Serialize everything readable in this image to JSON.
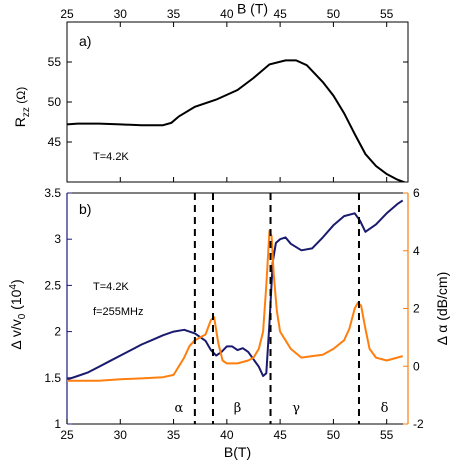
{
  "chart_data": [
    {
      "type": "line",
      "panel_label": "a)",
      "xlabel": "B (T)",
      "ylabel": "R",
      "ylabel_sub": "zz",
      "ylabel_unit": " (Ω)",
      "xlim": [
        25,
        57
      ],
      "ylim": [
        40,
        60
      ],
      "xticks": [
        25,
        30,
        35,
        40,
        45,
        50,
        55
      ],
      "yticks": [
        45,
        50,
        55
      ],
      "annotation": "T=4.2K",
      "series": [
        {
          "color": "#000000",
          "x": [
            25,
            26,
            28,
            30,
            32,
            34,
            34.8,
            35.5,
            37,
            39,
            41,
            42.5,
            44,
            45.5,
            46.5,
            47.5,
            49,
            50,
            51,
            52,
            53,
            54,
            55,
            56,
            57
          ],
          "y": [
            47.2,
            47.3,
            47.3,
            47.2,
            47.1,
            47.1,
            47.4,
            48.2,
            49.4,
            50.3,
            51.5,
            53.0,
            54.7,
            55.2,
            55.2,
            54.6,
            52.5,
            50.8,
            48.6,
            46.0,
            43.5,
            42.0,
            41.0,
            40.3,
            39.8
          ]
        }
      ]
    },
    {
      "type": "line",
      "panel_label": "b)",
      "xlabel": "B(T)",
      "ylabel_left": "Δ v/v",
      "ylabel_left_sub": "0",
      "ylabel_left_unit": " (10",
      "ylabel_left_sup": "4",
      "ylabel_left_close": ")",
      "ylabel_right": "Δ α (dB/cm)",
      "xlim": [
        25,
        57
      ],
      "ylim_left": [
        1,
        3.5
      ],
      "ylim_right": [
        -2,
        6
      ],
      "xticks": [
        25,
        30,
        35,
        40,
        45,
        50,
        55
      ],
      "yticks_left": [
        1,
        1.5,
        2,
        2.5,
        3,
        3.5
      ],
      "yticks_left_labels": [
        "1",
        "1.5",
        "2",
        "2.5",
        "3",
        "3.5"
      ],
      "yticks_right": [
        -2,
        0,
        2,
        4,
        6
      ],
      "yticks_right_labels": [
        "-2",
        "0",
        "2",
        "4",
        "6"
      ],
      "annotations": [
        "T=4.2K",
        "f=255MHz"
      ],
      "dashed_lines_x": [
        37,
        38.7,
        44.1,
        52.4
      ],
      "phase_labels": [
        {
          "label": "α",
          "x": 35.5
        },
        {
          "label": "β",
          "x": 41.0
        },
        {
          "label": "γ",
          "x": 46.5
        },
        {
          "label": "δ",
          "x": 54.8
        }
      ],
      "left_axis_color": "#1a1a80",
      "right_axis_color": "#ff7f0e",
      "series": [
        {
          "axis": "left",
          "color": "#1a1a6e",
          "x": [
            25,
            26,
            27,
            28,
            29,
            30,
            31,
            32,
            33,
            34,
            35,
            36,
            37,
            38,
            38.5,
            39,
            39.5,
            40,
            40.5,
            41,
            41.5,
            42,
            42.5,
            43,
            43.4,
            43.7,
            44,
            44.3,
            44.6,
            45,
            45.5,
            46,
            47,
            48,
            49,
            50,
            51,
            52,
            52.5,
            53,
            54,
            55,
            56,
            56.5
          ],
          "y": [
            1.48,
            1.52,
            1.56,
            1.62,
            1.68,
            1.74,
            1.8,
            1.86,
            1.91,
            1.96,
            2.0,
            2.02,
            1.98,
            1.9,
            1.8,
            1.74,
            1.78,
            1.84,
            1.84,
            1.8,
            1.82,
            1.78,
            1.7,
            1.62,
            1.52,
            1.55,
            2.1,
            2.75,
            2.96,
            3.0,
            3.02,
            2.95,
            2.88,
            2.9,
            3.02,
            3.15,
            3.25,
            3.28,
            3.2,
            3.08,
            3.16,
            3.28,
            3.38,
            3.42
          ]
        },
        {
          "axis": "right",
          "color": "#ff7f0e",
          "x": [
            25,
            26,
            28,
            30,
            32,
            34,
            35,
            36,
            36.5,
            37,
            37.5,
            38,
            38.5,
            38.8,
            39.2,
            39.6,
            40,
            41,
            42,
            42.5,
            43,
            43.4,
            43.7,
            44,
            44.2,
            44.4,
            44.7,
            45,
            45.5,
            46,
            47,
            48,
            49,
            50,
            51,
            51.5,
            52,
            52.3,
            52.6,
            53,
            53.4,
            54,
            55,
            56,
            56.5
          ],
          "y": [
            -0.5,
            -0.5,
            -0.5,
            -0.45,
            -0.42,
            -0.38,
            -0.3,
            0.3,
            0.7,
            0.9,
            1.0,
            1.1,
            1.6,
            1.7,
            0.8,
            0.2,
            0.1,
            0.1,
            0.2,
            0.3,
            0.6,
            1.2,
            2.8,
            4.7,
            4.5,
            3.2,
            1.9,
            1.2,
            0.9,
            0.6,
            0.3,
            0.35,
            0.4,
            0.6,
            0.9,
            1.3,
            2.0,
            2.2,
            2.1,
            1.3,
            0.6,
            0.3,
            0.2,
            0.3,
            0.35
          ]
        }
      ]
    }
  ]
}
